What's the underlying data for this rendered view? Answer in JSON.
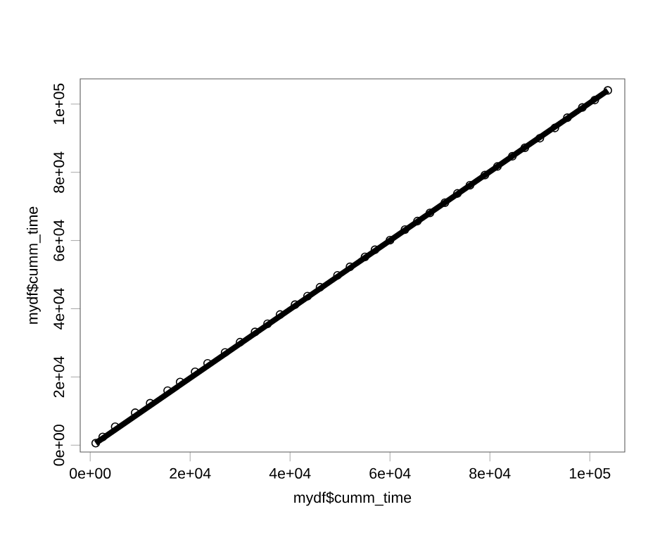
{
  "chart_data": {
    "type": "scatter",
    "xlabel": "mydf$cumm_time",
    "ylabel": "mydf$cumm_time",
    "xlim": [
      -2000,
      107000
    ],
    "ylim": [
      -2000,
      107400
    ],
    "xticks": [
      {
        "value": 0,
        "label": "0e+00"
      },
      {
        "value": 20000,
        "label": "2e+04"
      },
      {
        "value": 40000,
        "label": "4e+04"
      },
      {
        "value": 60000,
        "label": "6e+04"
      },
      {
        "value": 80000,
        "label": "8e+04"
      },
      {
        "value": 100000,
        "label": "1e+05"
      }
    ],
    "yticks": [
      {
        "value": 0,
        "label": "0e+00"
      },
      {
        "value": 20000,
        "label": "2e+04"
      },
      {
        "value": 40000,
        "label": "4e+04"
      },
      {
        "value": 60000,
        "label": "6e+04"
      },
      {
        "value": 80000,
        "label": "8e+04"
      },
      {
        "value": 100000,
        "label": "1e+05"
      }
    ],
    "marker": "circle",
    "grid": false,
    "series": [
      {
        "type": "line",
        "marker": "none",
        "color": "#000000",
        "x": [
          1100,
          103600
        ],
        "values": [
          600,
          104000
        ]
      },
      {
        "color": "#000000",
        "x": [
          1100,
          2500,
          5000,
          9000,
          12000,
          15500,
          18000,
          21000,
          23500,
          27000,
          30000,
          33000,
          35500,
          38000,
          41000,
          43500,
          46000,
          49500,
          52000,
          55000,
          57000,
          60000,
          63000,
          65500,
          68000,
          71000,
          73500,
          76000,
          79000,
          81500,
          84500,
          87000,
          90000,
          93000,
          95500,
          98500,
          101000,
          103600
        ],
        "values": [
          600,
          2400,
          5400,
          9500,
          12300,
          16000,
          18500,
          21500,
          24000,
          27200,
          30200,
          33200,
          35600,
          38300,
          41200,
          43700,
          46300,
          49800,
          52300,
          55200,
          57300,
          60100,
          63200,
          65700,
          68100,
          71100,
          73800,
          76200,
          79200,
          81700,
          84700,
          87200,
          90000,
          93000,
          96000,
          99000,
          101200,
          104000
        ]
      }
    ]
  }
}
